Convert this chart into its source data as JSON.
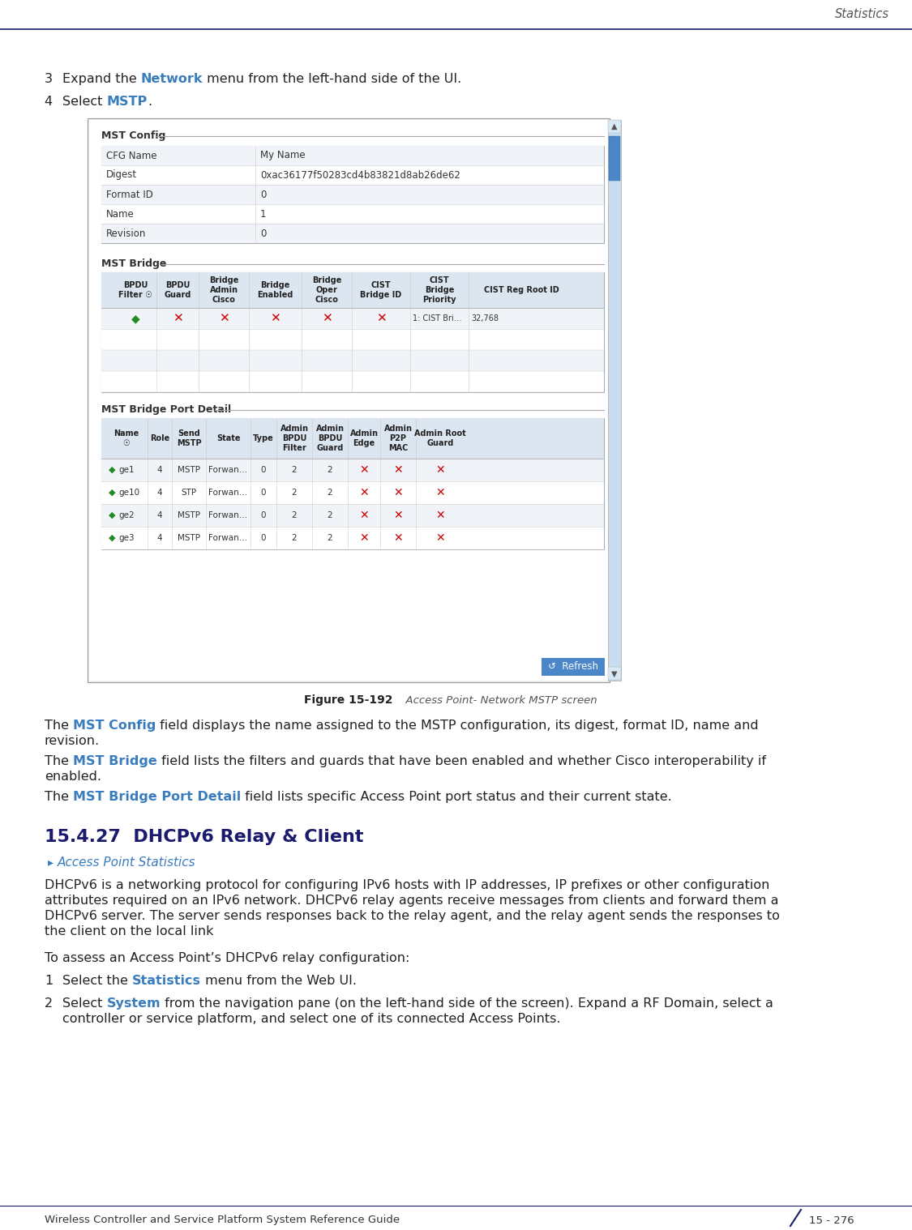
{
  "bg_color": "#ffffff",
  "header_line_color": "#1a1a6e",
  "header_text": "Statistics",
  "header_text_color": "#555555",
  "footer_text_left": "Wireless Controller and Service Platform System Reference Guide",
  "footer_text_right": "15 - 276",
  "bold_color": "#3a7dbf",
  "section_title_color": "#1a1a6e",
  "section_subtitle_color": "#3a7dbf",
  "red_x_color": "#cc0000",
  "green_arrow_color": "#228B22",
  "table_header_bg": "#dce6f1",
  "table_row_alt_bg": "#f0f4f8",
  "table_row_bg": "#ffffff",
  "table_border": "#bbbbbb",
  "scrollbar_track": "#c8ddf0",
  "scrollbar_thumb": "#4a86c8",
  "refresh_btn_color": "#4a86c8",
  "mst_config_rows": [
    [
      "CFG Name",
      "My Name"
    ],
    [
      "Digest",
      "0xac36177f50283cd4b83821d8ab26de62"
    ],
    [
      "Format ID",
      "0"
    ],
    [
      "Name",
      "1"
    ],
    [
      "Revision",
      "0"
    ]
  ],
  "mst_bridge_headers": [
    "BPDU\nFilter ☉",
    "BPDU\nGuard",
    "Bridge\nAdmin\nCisco",
    "Bridge\nEnabled",
    "Bridge\nOper\nCisco",
    "CIST\nBridge ID",
    "CIST\nBridge\nPriority",
    "CIST Reg Root ID"
  ],
  "mst_bridge_col_widths": [
    52,
    52,
    62,
    65,
    62,
    72,
    72,
    130
  ],
  "mst_port_headers": [
    "Name\n☉",
    "Role",
    "Send\nMSTP",
    "State",
    "Type",
    "Admin\nBPDU\nFilter",
    "Admin\nBPDU\nGuard",
    "Admin\nEdge",
    "Admin\nP2P\nMAC",
    "Admin Root\nGuard"
  ],
  "mst_port_col_widths": [
    52,
    30,
    42,
    55,
    32,
    44,
    44,
    40,
    44,
    60
  ],
  "mst_port_rows": [
    [
      "ge1",
      "4",
      "MSTP",
      "Forwan…",
      "0",
      "2",
      "2",
      "x",
      "x",
      "x"
    ],
    [
      "ge10",
      "4",
      "STP",
      "Forwan…",
      "0",
      "2",
      "2",
      "x",
      "x",
      "x"
    ],
    [
      "ge2",
      "4",
      "MSTP",
      "Forwan…",
      "0",
      "2",
      "2",
      "x",
      "x",
      "x"
    ],
    [
      "ge3",
      "4",
      "MSTP",
      "Forwan…",
      "0",
      "2",
      "2",
      "x",
      "x",
      "x"
    ]
  ]
}
